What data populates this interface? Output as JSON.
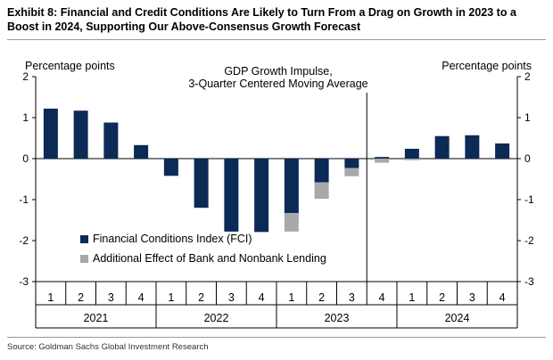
{
  "exhibit_title": "Exhibit 8: Financial and Credit Conditions Are Likely to Turn From a Drag on Growth in 2023 to a Boost in 2024, Supporting Our Above-Consensus Growth Forecast",
  "source": "Source: Goldman Sachs Global Investment Research",
  "chart_data": {
    "type": "bar",
    "stacked": true,
    "title": "GDP Growth Impulse, 3-Quarter Centered Moving Average",
    "title_lines": [
      "GDP Growth Impulse,",
      "3-Quarter Centered Moving Average"
    ],
    "ylabel_left": "Percentage points",
    "ylabel_right": "Percentage points",
    "ylim": [
      -3,
      2
    ],
    "yticks": [
      2,
      1,
      0,
      -1,
      -2,
      -3
    ],
    "categories": [
      "1",
      "2",
      "3",
      "4",
      "1",
      "2",
      "3",
      "4",
      "1",
      "2",
      "3",
      "4",
      "1",
      "2",
      "3",
      "4"
    ],
    "years": [
      {
        "label": "2021",
        "start": 0,
        "end": 3
      },
      {
        "label": "2022",
        "start": 4,
        "end": 7
      },
      {
        "label": "2023",
        "start": 8,
        "end": 11
      },
      {
        "label": "2024",
        "start": 12,
        "end": 15
      }
    ],
    "forecast_divider_after_index": 10,
    "series": [
      {
        "name": "Financial Conditions Index (FCI)",
        "color": "#0b2a55",
        "values": [
          1.22,
          1.17,
          0.88,
          0.33,
          -0.42,
          -1.2,
          -1.78,
          -1.79,
          -1.33,
          -0.58,
          -0.23,
          0.04,
          0.24,
          0.55,
          0.57,
          0.37
        ]
      },
      {
        "name": "Additional Effect of Bank and Nonbank Lending",
        "color": "#a9a9a9",
        "values": [
          0,
          0,
          0,
          0,
          0,
          0,
          0,
          0,
          -0.45,
          -0.4,
          -0.2,
          -0.1,
          -0.04,
          0,
          0,
          0
        ]
      }
    ],
    "legend_position": "bottom-left",
    "grid": false
  }
}
